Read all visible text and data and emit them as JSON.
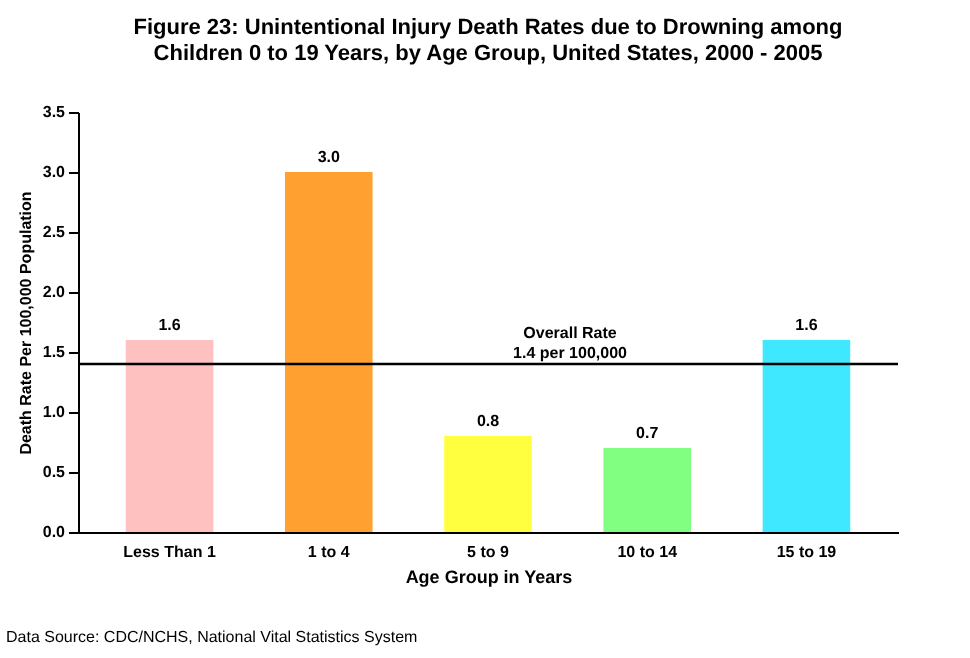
{
  "chart_data": {
    "type": "bar",
    "title": "Figure 23: Unintentional Injury Death Rates due to Drowning among Children 0 to 19 Years, by Age Group, United States, 2000 - 2005",
    "xlabel": "Age Group in Years",
    "ylabel": "Death Rate Per 100,000 Population",
    "categories": [
      "Less Than 1",
      "1 to 4",
      "5 to 9",
      "10 to 14",
      "15 to 19"
    ],
    "values": [
      1.6,
      3.0,
      0.8,
      0.7,
      1.6
    ],
    "colors": [
      "#ffc0c0",
      "#ffa030",
      "#ffff40",
      "#80ff80",
      "#40e8ff"
    ],
    "value_labels": [
      "1.6",
      "3.0",
      "0.8",
      "0.7",
      "1.6"
    ],
    "ylim": [
      0,
      3.5
    ],
    "yticks": [
      {
        "value": 0,
        "label": "0.0"
      },
      0.5,
      {
        "value": 1,
        "label": "1.0"
      },
      1.5,
      {
        "value": 2,
        "label": "2.0"
      },
      2.5,
      {
        "value": 3,
        "label": "3.0"
      },
      3.5
    ],
    "grid": false,
    "ref_lines": [
      {
        "axis": "y",
        "value": 1.4,
        "label": "Overall Rate\n1.4 per 100,000",
        "color": "#000000"
      }
    ],
    "annotations": [
      "Data Source: CDC/NCHS, National Vital Statistics System"
    ]
  }
}
